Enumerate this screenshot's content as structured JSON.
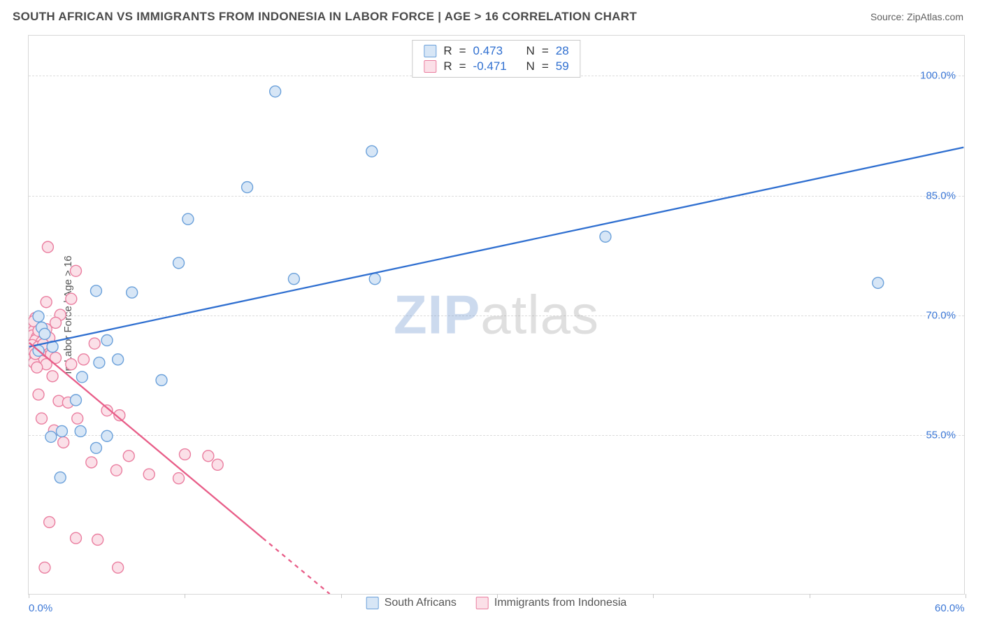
{
  "header": {
    "title": "SOUTH AFRICAN VS IMMIGRANTS FROM INDONESIA IN LABOR FORCE | AGE > 16 CORRELATION CHART",
    "source_prefix": "Source: ",
    "source_name": "ZipAtlas.com"
  },
  "chart": {
    "type": "scatter",
    "y_axis_label": "In Labor Force | Age > 16",
    "background_color": "#ffffff",
    "grid_color": "#dcdcdc",
    "axis_tick_color": "#c8c8c8",
    "label_color": "#3b77d6",
    "xlim": [
      0,
      60
    ],
    "ylim": [
      35,
      105
    ],
    "x_ticks": [
      0,
      10,
      20,
      30,
      40,
      50,
      60
    ],
    "x_tick_labels": [
      "0.0%",
      "",
      "",
      "",
      "",
      "",
      "60.0%"
    ],
    "y_ticks": [
      55,
      70,
      85,
      100
    ],
    "y_tick_labels": [
      "55.0%",
      "70.0%",
      "85.0%",
      "100.0%"
    ],
    "watermark": {
      "zip": "ZIP",
      "atlas": "atlas"
    },
    "series_blue": {
      "label": "South Africans",
      "marker_fill": "#d7e6f6",
      "marker_stroke": "#6aa0da",
      "marker_radius": 8,
      "line_color": "#2f6fd0",
      "line_width": 2.3,
      "R": "0.473",
      "N": "28",
      "regression": {
        "x1": 0,
        "y1": 66,
        "x2": 60,
        "y2": 91
      },
      "points": [
        {
          "x": 15.8,
          "y": 98.0
        },
        {
          "x": 22.0,
          "y": 90.5
        },
        {
          "x": 14.0,
          "y": 86.0
        },
        {
          "x": 10.2,
          "y": 82.0
        },
        {
          "x": 37.0,
          "y": 79.8
        },
        {
          "x": 54.5,
          "y": 74.0
        },
        {
          "x": 9.6,
          "y": 76.5
        },
        {
          "x": 17.0,
          "y": 74.5
        },
        {
          "x": 22.2,
          "y": 74.5
        },
        {
          "x": 4.3,
          "y": 73.0
        },
        {
          "x": 6.6,
          "y": 72.8
        },
        {
          "x": 0.6,
          "y": 69.8
        },
        {
          "x": 0.8,
          "y": 68.4
        },
        {
          "x": 1.0,
          "y": 67.6
        },
        {
          "x": 5.0,
          "y": 66.8
        },
        {
          "x": 4.5,
          "y": 64.0
        },
        {
          "x": 5.7,
          "y": 64.4
        },
        {
          "x": 3.4,
          "y": 62.2
        },
        {
          "x": 8.5,
          "y": 61.8
        },
        {
          "x": 3.0,
          "y": 59.3
        },
        {
          "x": 2.1,
          "y": 55.4
        },
        {
          "x": 3.3,
          "y": 55.4
        },
        {
          "x": 1.4,
          "y": 54.7
        },
        {
          "x": 5.0,
          "y": 54.8
        },
        {
          "x": 4.3,
          "y": 53.3
        },
        {
          "x": 2.0,
          "y": 49.6
        },
        {
          "x": 0.6,
          "y": 65.5
        },
        {
          "x": 1.5,
          "y": 66.0
        }
      ]
    },
    "series_pink": {
      "label": "Immigrants from Indonesia",
      "marker_fill": "#fbe0e8",
      "marker_stroke": "#ea7d9f",
      "marker_radius": 8,
      "line_color": "#e85d88",
      "line_width": 2.3,
      "R": "-0.471",
      "N": "59",
      "regression_solid": {
        "x1": 0,
        "y1": 66.5,
        "x2": 15.0,
        "y2": 42
      },
      "regression_dash": {
        "x1": 15.0,
        "y1": 42,
        "x2": 19.3,
        "y2": 35
      },
      "points": [
        {
          "x": 1.2,
          "y": 78.5
        },
        {
          "x": 3.0,
          "y": 75.5
        },
        {
          "x": 2.7,
          "y": 72.0
        },
        {
          "x": 1.1,
          "y": 71.6
        },
        {
          "x": 2.0,
          "y": 70.0
        },
        {
          "x": 1.7,
          "y": 69.0
        },
        {
          "x": 0.4,
          "y": 69.6
        },
        {
          "x": 0.2,
          "y": 68.8
        },
        {
          "x": 0.5,
          "y": 68.5
        },
        {
          "x": 1.1,
          "y": 68.2
        },
        {
          "x": 0.3,
          "y": 68.0
        },
        {
          "x": 0.9,
          "y": 67.8
        },
        {
          "x": 0.2,
          "y": 67.4
        },
        {
          "x": 0.5,
          "y": 67.2
        },
        {
          "x": 1.3,
          "y": 67.1
        },
        {
          "x": 0.4,
          "y": 66.8
        },
        {
          "x": 0.8,
          "y": 66.6
        },
        {
          "x": 0.2,
          "y": 66.2
        },
        {
          "x": 0.6,
          "y": 66.0
        },
        {
          "x": 1.0,
          "y": 65.8
        },
        {
          "x": 0.3,
          "y": 65.4
        },
        {
          "x": 0.7,
          "y": 65.2
        },
        {
          "x": 1.4,
          "y": 65.0
        },
        {
          "x": 0.4,
          "y": 64.8
        },
        {
          "x": 1.7,
          "y": 64.6
        },
        {
          "x": 0.8,
          "y": 64.2
        },
        {
          "x": 0.3,
          "y": 64.0
        },
        {
          "x": 1.1,
          "y": 63.8
        },
        {
          "x": 0.5,
          "y": 63.4
        },
        {
          "x": 2.7,
          "y": 63.8
        },
        {
          "x": 3.5,
          "y": 64.4
        },
        {
          "x": 4.2,
          "y": 66.4
        },
        {
          "x": 1.5,
          "y": 62.3
        },
        {
          "x": 0.6,
          "y": 60.0
        },
        {
          "x": 1.9,
          "y": 59.2
        },
        {
          "x": 2.5,
          "y": 59.0
        },
        {
          "x": 0.8,
          "y": 57.0
        },
        {
          "x": 3.1,
          "y": 57.0
        },
        {
          "x": 5.0,
          "y": 58.0
        },
        {
          "x": 5.8,
          "y": 57.4
        },
        {
          "x": 1.6,
          "y": 55.5
        },
        {
          "x": 2.2,
          "y": 54.0
        },
        {
          "x": 6.4,
          "y": 52.3
        },
        {
          "x": 4.0,
          "y": 51.5
        },
        {
          "x": 5.6,
          "y": 50.5
        },
        {
          "x": 9.6,
          "y": 49.5
        },
        {
          "x": 10.0,
          "y": 52.5
        },
        {
          "x": 11.5,
          "y": 52.3
        },
        {
          "x": 12.1,
          "y": 51.2
        },
        {
          "x": 7.7,
          "y": 50.0
        },
        {
          "x": 1.3,
          "y": 44.0
        },
        {
          "x": 3.0,
          "y": 42.0
        },
        {
          "x": 4.4,
          "y": 41.8
        },
        {
          "x": 1.0,
          "y": 38.3
        },
        {
          "x": 5.7,
          "y": 38.3
        },
        {
          "x": 0.3,
          "y": 69.2
        },
        {
          "x": 0.6,
          "y": 68.0
        },
        {
          "x": 0.9,
          "y": 66.3
        },
        {
          "x": 0.4,
          "y": 65.1
        }
      ]
    },
    "legend_top": {
      "R_label": "R",
      "N_label": "N",
      "eq": "=",
      "value_color": "#2f6fd0",
      "key_color": "#333333"
    },
    "legend_bottom": {
      "swatch_blue_fill": "#d7e6f6",
      "swatch_blue_stroke": "#6aa0da",
      "swatch_pink_fill": "#fbe0e8",
      "swatch_pink_stroke": "#ea7d9f"
    }
  }
}
